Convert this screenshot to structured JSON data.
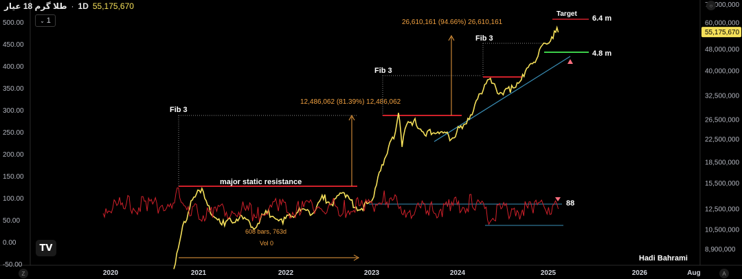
{
  "header": {
    "title": "طلا گرم 18 عیار",
    "timeframe": "1D",
    "last_value": "55,175,670",
    "interval_button": "1"
  },
  "author": "Hadi Bahrami",
  "colors": {
    "gold": "#f5e05a",
    "red": "#d0202a",
    "blue": "#3a8fb7",
    "green": "#3cd04a",
    "orange": "#f0a040",
    "bg": "#000000"
  },
  "chart_data": {
    "type": "line",
    "title": "",
    "x_ticks": [
      "2020",
      "2021",
      "2022",
      "2023",
      "2024",
      "2025",
      "2026",
      "Aug"
    ],
    "left_axis": {
      "ticks": [
        "500.00",
        "450.00",
        "400.00",
        "350.00",
        "300.00",
        "250.00",
        "200.00",
        "150.00",
        "100.00",
        "50.00",
        "0.00",
        "-50.00"
      ],
      "range": [
        -50,
        510
      ]
    },
    "right_axis": {
      "ticks": [
        "70,000,000",
        "60,000,000",
        "55,175,670",
        "48,000,000",
        "40,000,000",
        "32,500,000",
        "26,500,000",
        "22,500,000",
        "18,500,000",
        "15,500,000",
        "12,500,000",
        "10,500,000",
        "8,900,000"
      ],
      "scale": "log",
      "range": [
        8000000,
        72000000
      ],
      "last_value": "55,175,670"
    },
    "series": [
      {
        "color": "#f5e05a",
        "points": [
          [
            "2020-09-20",
            7500000
          ],
          [
            "2020-10-15",
            9500000
          ],
          [
            "2020-11-25",
            12500000
          ],
          [
            "2021-01-15",
            14800000
          ],
          [
            "2021-02-20",
            12000000
          ],
          [
            "2021-04-20",
            10800000
          ],
          [
            "2021-06-20",
            11500000
          ],
          [
            "2021-08-20",
            10500000
          ],
          [
            "2021-10-15",
            12000000
          ],
          [
            "2021-12-20",
            11000000
          ],
          [
            "2022-02-15",
            12000000
          ],
          [
            "2022-04-15",
            11800000
          ],
          [
            "2022-06-10",
            13500000
          ],
          [
            "2022-07-20",
            12800000
          ],
          [
            "2022-09-01",
            14300000
          ],
          [
            "2022-10-15",
            12600000
          ],
          [
            "2022-11-25",
            12300000
          ],
          [
            "2023-01-10",
            13800000
          ],
          [
            "2023-02-25",
            19000000
          ],
          [
            "2023-04-05",
            22500000
          ],
          [
            "2023-04-25",
            28000000
          ],
          [
            "2023-05-10",
            21000000
          ],
          [
            "2023-06-05",
            26000000
          ],
          [
            "2023-07-10",
            25200000
          ],
          [
            "2023-08-20",
            23000000
          ],
          [
            "2023-10-15",
            23500000
          ],
          [
            "2023-12-05",
            22400000
          ],
          [
            "2024-01-20",
            24500000
          ],
          [
            "2024-03-05",
            28500000
          ],
          [
            "2024-05-01",
            37000000
          ],
          [
            "2024-06-10",
            33000000
          ],
          [
            "2024-08-01",
            33200000
          ],
          [
            "2024-09-25",
            38000000
          ],
          [
            "2024-11-15",
            44000000
          ],
          [
            "2024-12-25",
            50000000
          ],
          [
            "2025-02-10",
            55175670
          ]
        ]
      },
      {
        "color": "#d0202a",
        "points": [
          [
            "2019-12-01",
            65
          ],
          [
            "2020-03-01",
            75
          ],
          [
            "2020-06-01",
            70
          ],
          [
            "2020-09-01",
            80
          ],
          [
            "2020-10-15",
            100
          ],
          [
            "2020-12-01",
            60
          ],
          [
            "2021-03-01",
            55
          ],
          [
            "2021-06-01",
            65
          ],
          [
            "2021-09-01",
            55
          ],
          [
            "2021-12-01",
            70
          ],
          [
            "2022-03-01",
            60
          ],
          [
            "2022-06-01",
            75
          ],
          [
            "2022-09-01",
            65
          ],
          [
            "2022-12-01",
            70
          ],
          [
            "2023-03-01",
            85
          ],
          [
            "2023-06-01",
            65
          ],
          [
            "2023-09-01",
            60
          ],
          [
            "2023-12-01",
            70
          ],
          [
            "2024-03-01",
            80
          ],
          [
            "2024-05-01",
            50
          ],
          [
            "2024-08-01",
            60
          ],
          [
            "2024-11-01",
            65
          ],
          [
            "2025-02-10",
            75
          ]
        ]
      }
    ],
    "annotations": {
      "fib_labels": [
        "Fib 3",
        "Fib 3",
        "Fib 3"
      ],
      "resistance_label": "major static resistance",
      "measure_1": "12,486,062 (81.39%) 12,486,062",
      "measure_2": "26,610,161 (94.66%) 26,610,161",
      "range_bars": "608 bars, 763d",
      "range_vol": "Vol 0",
      "target_label": "Target",
      "target_value": "6.4 m",
      "level_value": "4.8 m",
      "osc_level": "88"
    },
    "grid": false,
    "legend": "none"
  }
}
